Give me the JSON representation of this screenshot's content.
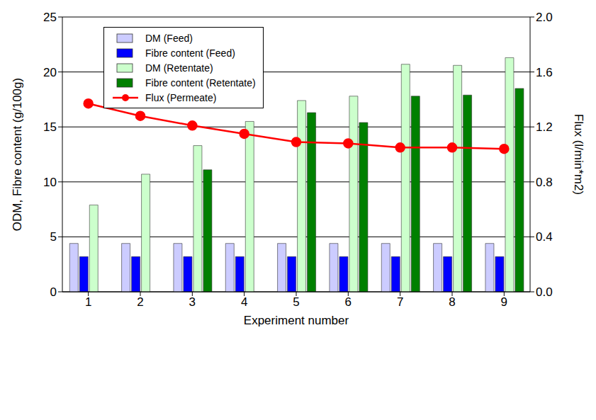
{
  "chart_data": {
    "type": "bar",
    "x_label": "Experiment number",
    "y_label": "ODM, Fibre content (g/100g)",
    "y2_label": "Flux (l/min*m2)",
    "categories": [
      "1",
      "2",
      "3",
      "4",
      "5",
      "6",
      "7",
      "8",
      "9"
    ],
    "series": [
      {
        "name": "DM (Feed)",
        "type": "bar",
        "color": "#ccccff",
        "values": [
          4.4,
          4.4,
          4.4,
          4.4,
          4.4,
          4.4,
          4.4,
          4.4,
          4.4
        ]
      },
      {
        "name": "Fibre content (Feed)",
        "type": "bar",
        "color": "#0000ff",
        "values": [
          3.2,
          3.2,
          3.2,
          3.2,
          3.2,
          3.2,
          3.2,
          3.2,
          3.2
        ]
      },
      {
        "name": "DM (Retentate)",
        "type": "bar",
        "color": "#ccffcc",
        "values": [
          7.9,
          10.7,
          13.3,
          15.5,
          17.4,
          17.8,
          20.7,
          20.6,
          21.3
        ]
      },
      {
        "name": "Fibre content (Retentate)",
        "type": "bar",
        "color": "#008000",
        "values": [
          null,
          null,
          11.1,
          null,
          16.3,
          15.4,
          17.8,
          17.9,
          18.5
        ]
      },
      {
        "name": "Flux (Permeate)",
        "type": "line",
        "axis": "y2",
        "color": "#ff0000",
        "marker": "circle",
        "values": [
          1.37,
          1.28,
          1.21,
          1.15,
          1.09,
          1.08,
          1.05,
          1.05,
          1.04
        ]
      }
    ],
    "ylim": [
      0,
      25
    ],
    "yticks": [
      0,
      5,
      10,
      15,
      20,
      25
    ],
    "y2lim": [
      0,
      2
    ],
    "y2ticks": [
      {
        "value": 0,
        "label": "0.0"
      },
      {
        "value": 0.4,
        "label": "0.4"
      },
      {
        "value": 0.8,
        "label": "0.8"
      },
      {
        "value": 1.2,
        "label": "1.2"
      },
      {
        "value": 1.6,
        "label": "1.6"
      },
      {
        "value": 2,
        "label": "2.0"
      }
    ],
    "grid": true,
    "legend": "upper left"
  }
}
